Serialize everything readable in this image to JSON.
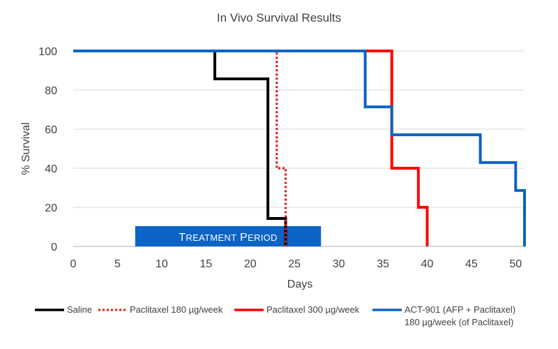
{
  "chart_data": {
    "type": "line",
    "title": "In Vivo Survival Results",
    "xlabel": "Days",
    "ylabel": "% Survival",
    "xlim": [
      0,
      51
    ],
    "ylim": [
      0,
      100
    ],
    "x_ticks": [
      0,
      5,
      10,
      15,
      20,
      25,
      30,
      35,
      40,
      45,
      50
    ],
    "y_ticks": [
      0,
      20,
      40,
      60,
      80,
      100
    ],
    "grid": "horizontal",
    "legend": "bottom",
    "annotation": {
      "text": "Treatment Period",
      "x_start": 7,
      "x_end": 28,
      "color": "#0b63c6"
    },
    "series": [
      {
        "name": "Saline",
        "color": "#000000",
        "style": "solid",
        "points": [
          [
            0,
            100
          ],
          [
            16,
            100
          ],
          [
            16,
            85.7
          ],
          [
            22,
            85.7
          ],
          [
            22,
            14.3
          ],
          [
            24,
            14.3
          ],
          [
            24,
            0
          ]
        ]
      },
      {
        "name": "Paclitaxel 180 µg/week",
        "color": "#e41a1c",
        "style": "dotted",
        "points": [
          [
            0,
            100
          ],
          [
            23,
            100
          ],
          [
            23,
            40
          ],
          [
            24,
            40
          ],
          [
            24,
            0
          ]
        ]
      },
      {
        "name": "Paclitaxel 300 µg/week",
        "color": "#ff0000",
        "style": "solid",
        "points": [
          [
            0,
            100
          ],
          [
            36,
            100
          ],
          [
            36,
            40
          ],
          [
            39,
            40
          ],
          [
            39,
            20
          ],
          [
            40,
            20
          ],
          [
            40,
            0
          ]
        ]
      },
      {
        "name": "ACT-901 (AFP + Paclitaxel)",
        "name_line2": "180 µg/week (of Paclitaxel)",
        "color": "#0b63c6",
        "style": "solid",
        "points": [
          [
            0,
            100
          ],
          [
            33,
            100
          ],
          [
            33,
            71.4
          ],
          [
            36,
            71.4
          ],
          [
            36,
            57.1
          ],
          [
            46,
            57.1
          ],
          [
            46,
            42.9
          ],
          [
            50,
            42.9
          ],
          [
            50,
            28.6
          ],
          [
            51,
            28.6
          ],
          [
            51,
            0
          ]
        ]
      }
    ]
  }
}
